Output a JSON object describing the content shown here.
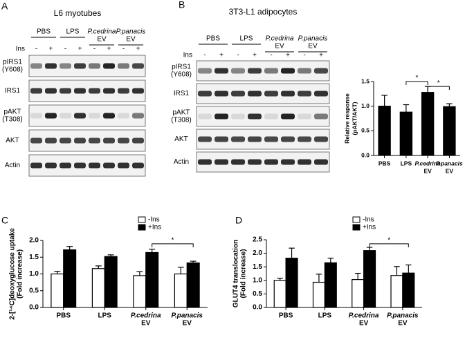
{
  "panels": [
    "A",
    "B",
    "C",
    "D"
  ],
  "blot_a": {
    "title": "L6 myotubes",
    "ins_label": "Ins",
    "signs": [
      "-",
      "+"
    ],
    "groups": [
      [
        "PBS"
      ],
      [
        "LPS"
      ],
      [
        "P.cedrina",
        "EV"
      ],
      [
        "P.panacis",
        "EV"
      ]
    ],
    "rows": [
      [
        "pIRS1",
        "(Y608)"
      ],
      [
        "IRS1"
      ],
      [
        "pAKT",
        "(T308)"
      ],
      [
        "AKT"
      ],
      [
        "Actin"
      ]
    ]
  },
  "blot_b": {
    "title": "3T3-L1 adipocytes",
    "ins_label": "Ins",
    "signs": [
      "-",
      "+"
    ],
    "groups": [
      [
        "PBS"
      ],
      [
        "LPS"
      ],
      [
        "P.cedrina",
        "EV"
      ],
      [
        "P.panacis",
        "EV"
      ]
    ],
    "rows": [
      [
        "pIRS1",
        "(Y608)"
      ],
      [
        "IRS1"
      ],
      [
        "pAKT",
        "(T308)"
      ],
      [
        "AKT"
      ],
      [
        "Actin"
      ]
    ]
  },
  "chart_data": [
    {
      "type": "bar",
      "ylabel": [
        "Relative response",
        "(pAKT/AKT)"
      ],
      "categories": [
        [
          "PBS"
        ],
        [
          "LPS"
        ],
        [
          "P.cedrina",
          "EV"
        ],
        [
          "P.panacis",
          "EV"
        ]
      ],
      "values": [
        1.0,
        0.88,
        1.28,
        0.99
      ],
      "errors": [
        0.22,
        0.15,
        0.12,
        0.06
      ],
      "color": "#000000",
      "ylim": [
        0,
        1.5
      ],
      "yticks": [
        {
          "value": 0,
          "label": "0.0"
        },
        {
          "value": 0.5,
          "label": "0.5"
        },
        {
          "value": 1,
          "label": "1.0"
        },
        {
          "value": 1.5,
          "label": "1.5"
        }
      ],
      "annotations": [
        "*",
        "*"
      ]
    },
    {
      "type": "grouped_bar",
      "ylabel": [
        "2-[¹⁴C]deoxyglucose uptake",
        "(Fold increase)"
      ],
      "categories": [
        [
          "PBS"
        ],
        [
          "LPS"
        ],
        [
          "P.cedrina",
          "EV"
        ],
        [
          "P.panacis",
          "EV"
        ]
      ],
      "series": [
        {
          "name": "-Ins",
          "color": "#ffffff",
          "values": [
            1.0,
            1.16,
            0.95,
            1.0
          ],
          "errors": [
            0.08,
            0.08,
            0.12,
            0.2
          ]
        },
        {
          "name": "+Ins",
          "color": "#000000",
          "values": [
            1.72,
            1.52,
            1.64,
            1.33
          ],
          "errors": [
            0.1,
            0.05,
            0.1,
            0.05
          ]
        }
      ],
      "ylim": [
        0,
        2
      ],
      "yticks": [
        {
          "value": 0,
          "label": "0.0"
        },
        {
          "value": 0.5,
          "label": "0.5"
        },
        {
          "value": 1,
          "label": "1.0"
        },
        {
          "value": 1.5,
          "label": "1.5"
        },
        {
          "value": 2,
          "label": "2.0"
        }
      ],
      "annotations": [
        "*"
      ]
    },
    {
      "type": "grouped_bar",
      "ylabel": [
        "GLUT4 translocation",
        "(Fold increase)"
      ],
      "categories": [
        [
          "PBS"
        ],
        [
          "LPS"
        ],
        [
          "P.cedrina",
          "EV"
        ],
        [
          "P.panacis",
          "EV"
        ]
      ],
      "series": [
        {
          "name": "-Ins",
          "color": "#ffffff",
          "values": [
            1.0,
            0.93,
            1.03,
            1.18
          ],
          "errors": [
            0.08,
            0.3,
            0.23,
            0.33
          ]
        },
        {
          "name": "+Ins",
          "color": "#000000",
          "values": [
            1.82,
            1.65,
            2.1,
            1.27
          ],
          "errors": [
            0.37,
            0.17,
            0.12,
            0.3
          ]
        }
      ],
      "ylim": [
        0,
        2.5
      ],
      "yticks": [
        {
          "value": 0,
          "label": "0.0"
        },
        {
          "value": 0.5,
          "label": "0.5"
        },
        {
          "value": 1,
          "label": "1.0"
        },
        {
          "value": 1.5,
          "label": "1.5"
        },
        {
          "value": 2,
          "label": "2.0"
        },
        {
          "value": 2.5,
          "label": "2.5"
        }
      ],
      "annotations": [
        "*"
      ]
    }
  ]
}
